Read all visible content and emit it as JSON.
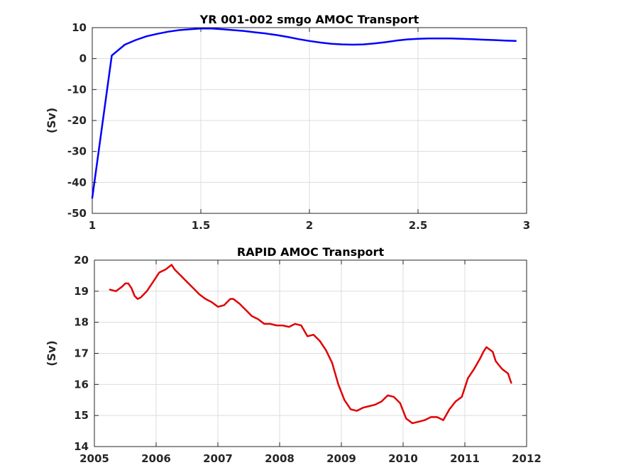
{
  "chart_data": [
    {
      "type": "line",
      "title": "YR 001-002 smgo AMOC Transport",
      "xlabel": "",
      "ylabel": "(Sv)",
      "xlim": [
        1,
        3
      ],
      "ylim": [
        -50,
        10
      ],
      "xticks": [
        1,
        1.5,
        2,
        2.5,
        3
      ],
      "xtick_labels": [
        "1",
        "1.5",
        "2",
        "2.5",
        "3"
      ],
      "yticks": [
        -50,
        -40,
        -30,
        -20,
        -10,
        0,
        10
      ],
      "ytick_labels": [
        "-50",
        "-40",
        "-30",
        "-20",
        "-10",
        "0",
        "10"
      ],
      "grid": true,
      "series": [
        {
          "color": "#0000ff",
          "x": [
            1.0,
            1.09,
            1.15,
            1.2,
            1.25,
            1.3,
            1.35,
            1.4,
            1.45,
            1.5,
            1.55,
            1.6,
            1.65,
            1.7,
            1.75,
            1.8,
            1.85,
            1.9,
            1.95,
            2.0,
            2.05,
            2.1,
            2.15,
            2.2,
            2.25,
            2.3,
            2.35,
            2.4,
            2.45,
            2.5,
            2.55,
            2.6,
            2.65,
            2.7,
            2.75,
            2.8,
            2.85,
            2.9,
            2.95
          ],
          "y": [
            -45,
            1,
            4.5,
            6.0,
            7.2,
            8.0,
            8.7,
            9.2,
            9.5,
            9.7,
            9.7,
            9.5,
            9.2,
            8.9,
            8.5,
            8.1,
            7.6,
            7.0,
            6.3,
            5.7,
            5.2,
            4.8,
            4.6,
            4.5,
            4.6,
            4.9,
            5.3,
            5.8,
            6.2,
            6.4,
            6.5,
            6.5,
            6.5,
            6.4,
            6.3,
            6.1,
            6.0,
            5.8,
            5.7
          ]
        }
      ]
    },
    {
      "type": "line",
      "title": "RAPID AMOC Transport",
      "xlabel": "",
      "ylabel": "(Sv)",
      "xlim": [
        2005,
        2012
      ],
      "ylim": [
        14,
        20
      ],
      "xticks": [
        2005,
        2006,
        2007,
        2008,
        2009,
        2010,
        2011,
        2012
      ],
      "xtick_labels": [
        "2005",
        "2006",
        "2007",
        "2008",
        "2009",
        "2010",
        "2011",
        "2012"
      ],
      "yticks": [
        14,
        15,
        16,
        17,
        18,
        19,
        20
      ],
      "ytick_labels": [
        "14",
        "15",
        "16",
        "17",
        "18",
        "19",
        "20"
      ],
      "grid": true,
      "series": [
        {
          "color": "#e00000",
          "x": [
            2005.25,
            2005.35,
            2005.45,
            2005.5,
            2005.55,
            2005.6,
            2005.65,
            2005.7,
            2005.75,
            2005.85,
            2005.95,
            2006.05,
            2006.15,
            2006.25,
            2006.3,
            2006.4,
            2006.5,
            2006.6,
            2006.7,
            2006.8,
            2006.9,
            2007.0,
            2007.1,
            2007.2,
            2007.25,
            2007.35,
            2007.45,
            2007.55,
            2007.65,
            2007.75,
            2007.85,
            2007.95,
            2008.05,
            2008.15,
            2008.25,
            2008.35,
            2008.45,
            2008.55,
            2008.65,
            2008.75,
            2008.85,
            2008.95,
            2009.05,
            2009.15,
            2009.25,
            2009.35,
            2009.45,
            2009.55,
            2009.65,
            2009.75,
            2009.85,
            2009.95,
            2010.05,
            2010.15,
            2010.25,
            2010.35,
            2010.45,
            2010.55,
            2010.65,
            2010.75,
            2010.85,
            2010.95,
            2011.05,
            2011.15,
            2011.25,
            2011.3,
            2011.35,
            2011.45,
            2011.5,
            2011.6,
            2011.7,
            2011.75
          ],
          "y": [
            19.05,
            19.0,
            19.15,
            19.25,
            19.25,
            19.1,
            18.85,
            18.75,
            18.8,
            19.0,
            19.3,
            19.6,
            19.7,
            19.85,
            19.7,
            19.5,
            19.3,
            19.1,
            18.9,
            18.75,
            18.65,
            18.5,
            18.55,
            18.75,
            18.75,
            18.6,
            18.4,
            18.2,
            18.1,
            17.95,
            17.95,
            17.9,
            17.9,
            17.85,
            17.95,
            17.9,
            17.55,
            17.6,
            17.4,
            17.1,
            16.7,
            16.0,
            15.5,
            15.2,
            15.15,
            15.25,
            15.3,
            15.35,
            15.45,
            15.65,
            15.6,
            15.4,
            14.9,
            14.75,
            14.8,
            14.85,
            14.95,
            14.95,
            14.85,
            15.2,
            15.45,
            15.6,
            16.2,
            16.5,
            16.85,
            17.05,
            17.2,
            17.05,
            16.75,
            16.5,
            16.35,
            16.05
          ]
        }
      ]
    }
  ]
}
